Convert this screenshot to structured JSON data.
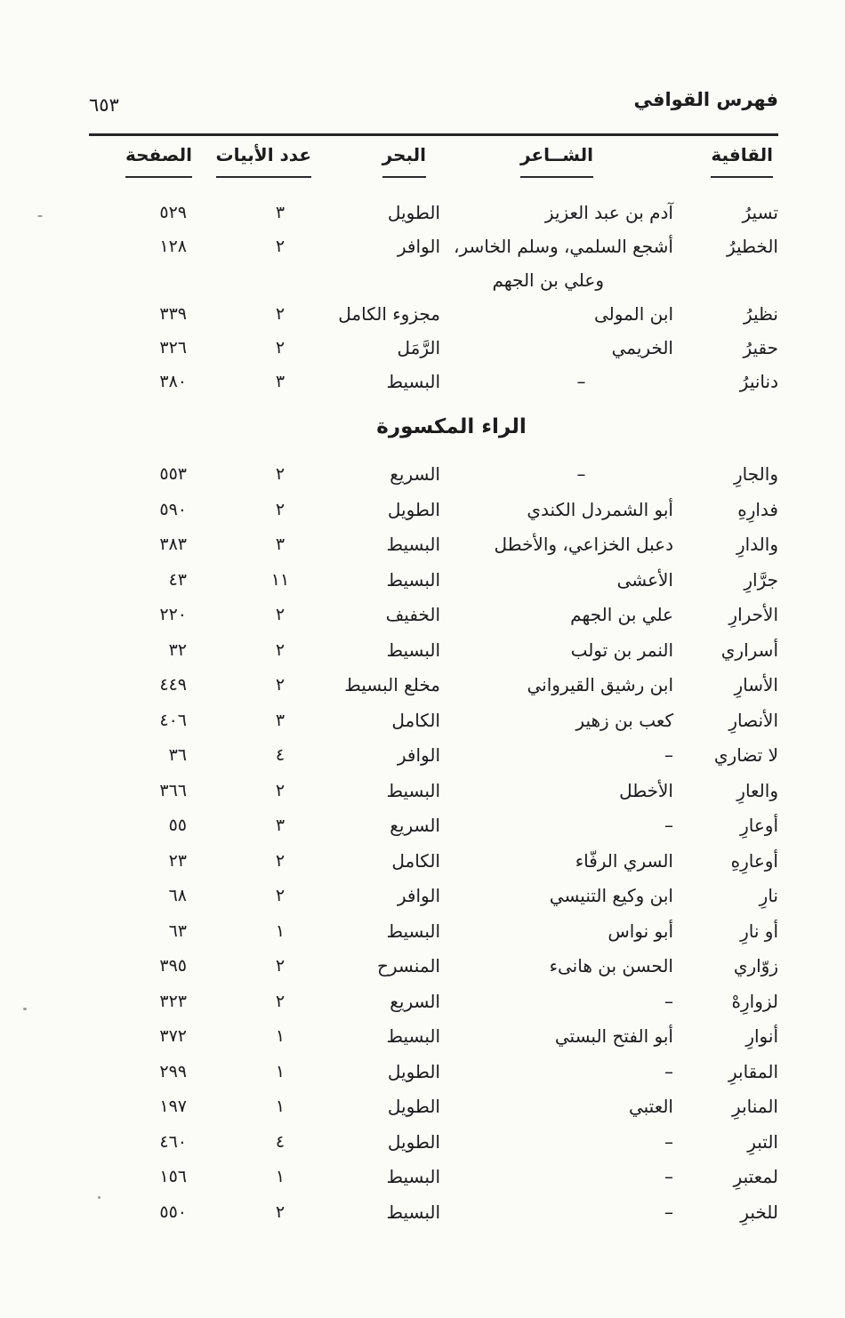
{
  "page": {
    "running_title": "فهرس القوافي",
    "page_number": "٦٥٣"
  },
  "table": {
    "columns": {
      "rhyme": "القافية",
      "poet": "الشــاعر",
      "meter": "البحر",
      "verses": "عدد الأبيات",
      "page": "الصفحة"
    },
    "sections": [
      {
        "title": "",
        "rows": [
          {
            "rhyme": "تسيرُ",
            "poet": "آدم بن عبد العزيز",
            "meter": "الطويل",
            "verses": "٣",
            "page": "٥٢٩"
          },
          {
            "rhyme": "الخطيرُ",
            "poet": "أشجع السلمي، وسلم الخاسر،",
            "poet2": "وعلي بن الجهم",
            "meter": "الوافر",
            "verses": "٢",
            "page": "١٢٨"
          },
          {
            "rhyme": "نظيرُ",
            "poet": "ابن المولى",
            "meter": "مجزوء الكامل",
            "verses": "٢",
            "page": "٣٣٩"
          },
          {
            "rhyme": "حقيرُ",
            "poet": "الخريمي",
            "meter": "الرَّمَل",
            "verses": "٢",
            "page": "٣٢٦"
          },
          {
            "rhyme": "دنانيرُ",
            "poet": "–",
            "poet_align": "center",
            "meter": "البسيط",
            "verses": "٣",
            "page": "٣٨٠"
          }
        ]
      },
      {
        "title": "الراء المكسورة",
        "rows": [
          {
            "rhyme": "والجارِ",
            "poet": "–",
            "poet_align": "center",
            "meter": "السريع",
            "verses": "٢",
            "page": "٥٥٣"
          },
          {
            "rhyme": "فدارِهِ",
            "poet": "أبو الشمردل الكندي",
            "meter": "الطويل",
            "verses": "٢",
            "page": "٥٩٠"
          },
          {
            "rhyme": "والدارِ",
            "poet": "دعبل الخزاعي، والأخطل",
            "meter": "البسيط",
            "verses": "٣",
            "page": "٣٨٣"
          },
          {
            "rhyme": "جرَّارِ",
            "poet": "الأعشى",
            "meter": "البسيط",
            "verses": "١١",
            "page": "٤٣"
          },
          {
            "rhyme": "الأحرارِ",
            "poet": "علي بن الجهم",
            "meter": "الخفيف",
            "verses": "٢",
            "page": "٢٢٠"
          },
          {
            "rhyme": "أسراري",
            "poet": "النمر بن تولب",
            "meter": "البسيط",
            "verses": "٢",
            "page": "٣٢"
          },
          {
            "rhyme": "الأسارِ",
            "poet": "ابن رشيق القيرواني",
            "meter": "مخلع البسيط",
            "verses": "٢",
            "page": "٤٤٩"
          },
          {
            "rhyme": "الأنصارِ",
            "poet": "كعب بن زهير",
            "meter": "الكامل",
            "verses": "٣",
            "page": "٤٠٦"
          },
          {
            "rhyme": "لا تضاري",
            "poet": "–",
            "meter": "الوافر",
            "verses": "٤",
            "page": "٣٦"
          },
          {
            "rhyme": "والعارِ",
            "poet": "الأخطل",
            "meter": "البسيط",
            "verses": "٢",
            "page": "٣٦٦"
          },
          {
            "rhyme": "أوعارِ",
            "poet": "–",
            "meter": "السريع",
            "verses": "٣",
            "page": "٥٥"
          },
          {
            "rhyme": "أوعارِهِ",
            "poet": "السري الرفّاء",
            "meter": "الكامل",
            "verses": "٢",
            "page": "٢٣"
          },
          {
            "rhyme": "نارِ",
            "poet": "ابن وكيع التنيسي",
            "meter": "الوافر",
            "verses": "٢",
            "page": "٦٨"
          },
          {
            "rhyme": "أو نارِ",
            "poet": "أبو نواس",
            "meter": "البسيط",
            "verses": "١",
            "page": "٦٣"
          },
          {
            "rhyme": "زوّاري",
            "poet": "الحسن بن هانىء",
            "meter": "المنسرح",
            "verses": "٢",
            "page": "٣٩٥"
          },
          {
            "rhyme": "لزوارِهْ",
            "poet": "–",
            "meter": "السريع",
            "verses": "٢",
            "page": "٣٢٣"
          },
          {
            "rhyme": "أنوارِ",
            "poet": "أبو الفتح البستي",
            "meter": "البسيط",
            "verses": "١",
            "page": "٣٧٢"
          },
          {
            "rhyme": "المقابرِ",
            "poet": "–",
            "meter": "الطويل",
            "verses": "١",
            "page": "٢٩٩"
          },
          {
            "rhyme": "المنابرِ",
            "poet": "العتبي",
            "meter": "الطويل",
            "verses": "١",
            "page": "١٩٧"
          },
          {
            "rhyme": "التبرِ",
            "poet": "–",
            "meter": "الطويل",
            "verses": "٤",
            "page": "٤٦٠"
          },
          {
            "rhyme": "لمعتبرِ",
            "poet": "–",
            "meter": "البسيط",
            "verses": "١",
            "page": "١٥٦"
          },
          {
            "rhyme": "للخبرِ",
            "poet": "–",
            "meter": "البسيط",
            "verses": "٢",
            "page": "٥٥٠"
          }
        ]
      }
    ]
  }
}
